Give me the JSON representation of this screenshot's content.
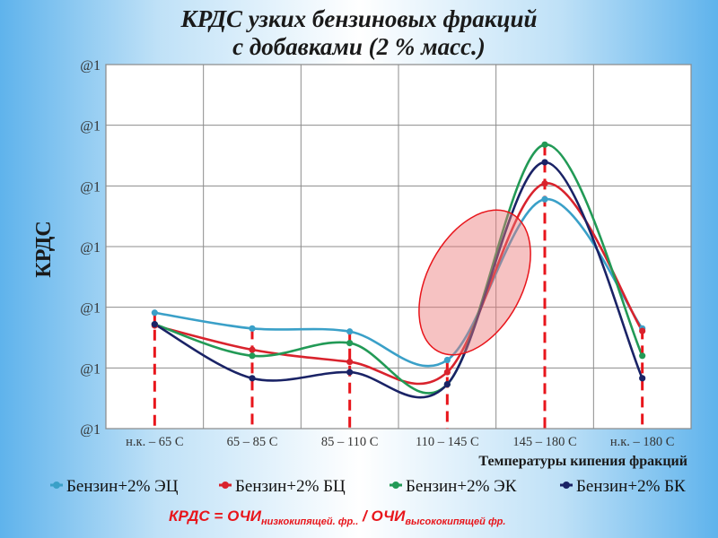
{
  "title": {
    "line1": "КРДС узких бензиновых фракций",
    "line2": "с добавками (2 % масс.)"
  },
  "chart_data": {
    "type": "line",
    "title": "КРДС узких бензиновых фракций с добавками (2 % масс.)",
    "xlabel": "Температуры кипения фракций",
    "ylabel": "КРДС",
    "categories": [
      "н.к. – 65 С",
      "65 – 85 С",
      "85 – 110 С",
      "110 – 145 С",
      "145 – 180 С",
      "н.к. – 180 С"
    ],
    "y_tick_labels": [
      "@1",
      "@1",
      "@1",
      "@1",
      "@1",
      "@1",
      "@1"
    ],
    "ylim": [
      0,
      6
    ],
    "grid": true,
    "legend_position": "bottom",
    "series": [
      {
        "name": "Бензин+2% ЭЦ",
        "color": "#3aa0c8",
        "values": [
          1.91,
          1.65,
          1.6,
          1.13,
          3.78,
          1.65
        ]
      },
      {
        "name": "Бензин+2% БЦ",
        "color": "#d9232d",
        "values": [
          1.7,
          1.3,
          1.1,
          0.93,
          4.04,
          1.61
        ]
      },
      {
        "name": "Бензин+2% ЭК",
        "color": "#229a56",
        "values": [
          1.72,
          1.2,
          1.41,
          0.73,
          4.68,
          1.2
        ]
      },
      {
        "name": "Бензин+2% БК",
        "color": "#1a2366",
        "values": [
          1.72,
          0.83,
          0.93,
          0.73,
          4.39,
          0.83
        ]
      }
    ]
  },
  "formula": {
    "lhs": "КРДС = ОЧИ",
    "sub1": "низкокипящей. фр..",
    "mid": " / ОЧИ",
    "sub2": "высококипящей фр."
  }
}
